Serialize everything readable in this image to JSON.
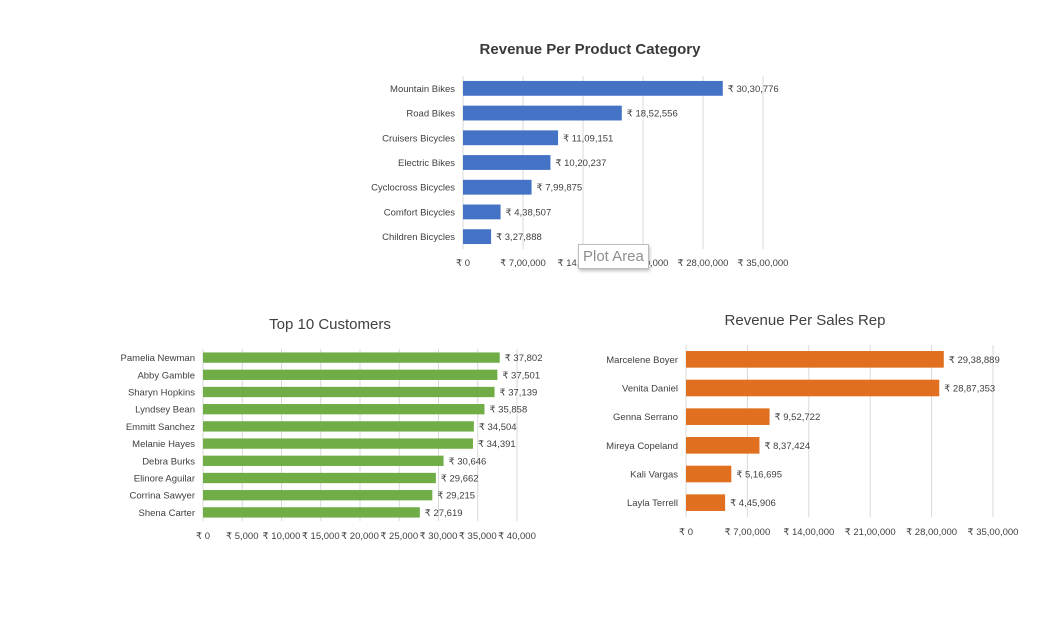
{
  "chart_data": [
    {
      "type": "bar",
      "orientation": "horizontal",
      "title": "Revenue Per Product Category",
      "categories": [
        "Mountain Bikes",
        "Road Bikes",
        "Cruisers Bicycles",
        "Electric Bikes",
        "Cyclocross Bicycles",
        "Comfort Bicycles",
        "Children Bicycles"
      ],
      "values": [
        3030776,
        1852556,
        1109151,
        1020237,
        799875,
        438507,
        327888
      ],
      "data_labels": [
        "₹ 30,30,776",
        "₹ 18,52,556",
        "₹ 11,09,151",
        "₹ 10,20,237",
        "₹ 7,99,875",
        "₹ 4,38,507",
        "₹ 3,27,888"
      ],
      "x_ticks": [
        0,
        700000,
        1400000,
        2100000,
        2800000,
        3500000
      ],
      "x_tick_labels": [
        "₹ 0",
        "₹ 7,00,000",
        "₹ 14,00,000",
        "₹ 21,00,000",
        "₹ 28,00,000",
        "₹ 35,00,000"
      ],
      "xlim": [
        0,
        3500000
      ],
      "grid": true,
      "color": "#4472C4"
    },
    {
      "type": "bar",
      "orientation": "horizontal",
      "title": "Top 10 Customers",
      "categories": [
        "Pamelia Newman",
        "Abby Gamble",
        "Sharyn Hopkins",
        "Lyndsey Bean",
        "Emmitt Sanchez",
        "Melanie Hayes",
        "Debra Burks",
        "Elinore Aguilar",
        "Corrina Sawyer",
        "Shena Carter"
      ],
      "values": [
        37802,
        37501,
        37139,
        35858,
        34504,
        34391,
        30646,
        29662,
        29215,
        27619
      ],
      "data_labels": [
        "₹ 37,802",
        "₹ 37,501",
        "₹ 37,139",
        "₹ 35,858",
        "₹ 34,504",
        "₹ 34,391",
        "₹ 30,646",
        "₹ 29,662",
        "₹ 29,215",
        "₹ 27,619"
      ],
      "x_ticks": [
        0,
        5000,
        10000,
        15000,
        20000,
        25000,
        30000,
        35000,
        40000
      ],
      "x_tick_labels": [
        "₹ 0",
        "₹ 5,000",
        "₹ 10,000",
        "₹ 15,000",
        "₹ 20,000",
        "₹ 25,000",
        "₹ 30,000",
        "₹ 35,000",
        "₹ 40,000"
      ],
      "xlim": [
        0,
        40000
      ],
      "grid": true,
      "color": "#70AD47"
    },
    {
      "type": "bar",
      "orientation": "horizontal",
      "title": "Revenue Per Sales Rep",
      "categories": [
        "Marcelene Boyer",
        "Venita Daniel",
        "Genna Serrano",
        "Mireya Copeland",
        "Kali Vargas",
        "Layla Terrell"
      ],
      "values": [
        2938889,
        2887353,
        952722,
        837424,
        516695,
        445906
      ],
      "data_labels": [
        "₹ 29,38,889",
        "₹ 28,87,353",
        "₹ 9,52,722",
        "₹ 8,37,424",
        "₹ 5,16,695",
        "₹ 4,45,906"
      ],
      "x_ticks": [
        0,
        700000,
        1400000,
        2100000,
        2800000,
        3500000
      ],
      "x_tick_labels": [
        "₹ 0",
        "₹ 7,00,000",
        "₹ 14,00,000",
        "₹ 21,00,000",
        "₹ 28,00,000",
        "₹ 35,00,000"
      ],
      "xlim": [
        0,
        3500000
      ],
      "grid": true,
      "color": "#E07020"
    }
  ],
  "tooltip": {
    "text": "Plot Area"
  }
}
